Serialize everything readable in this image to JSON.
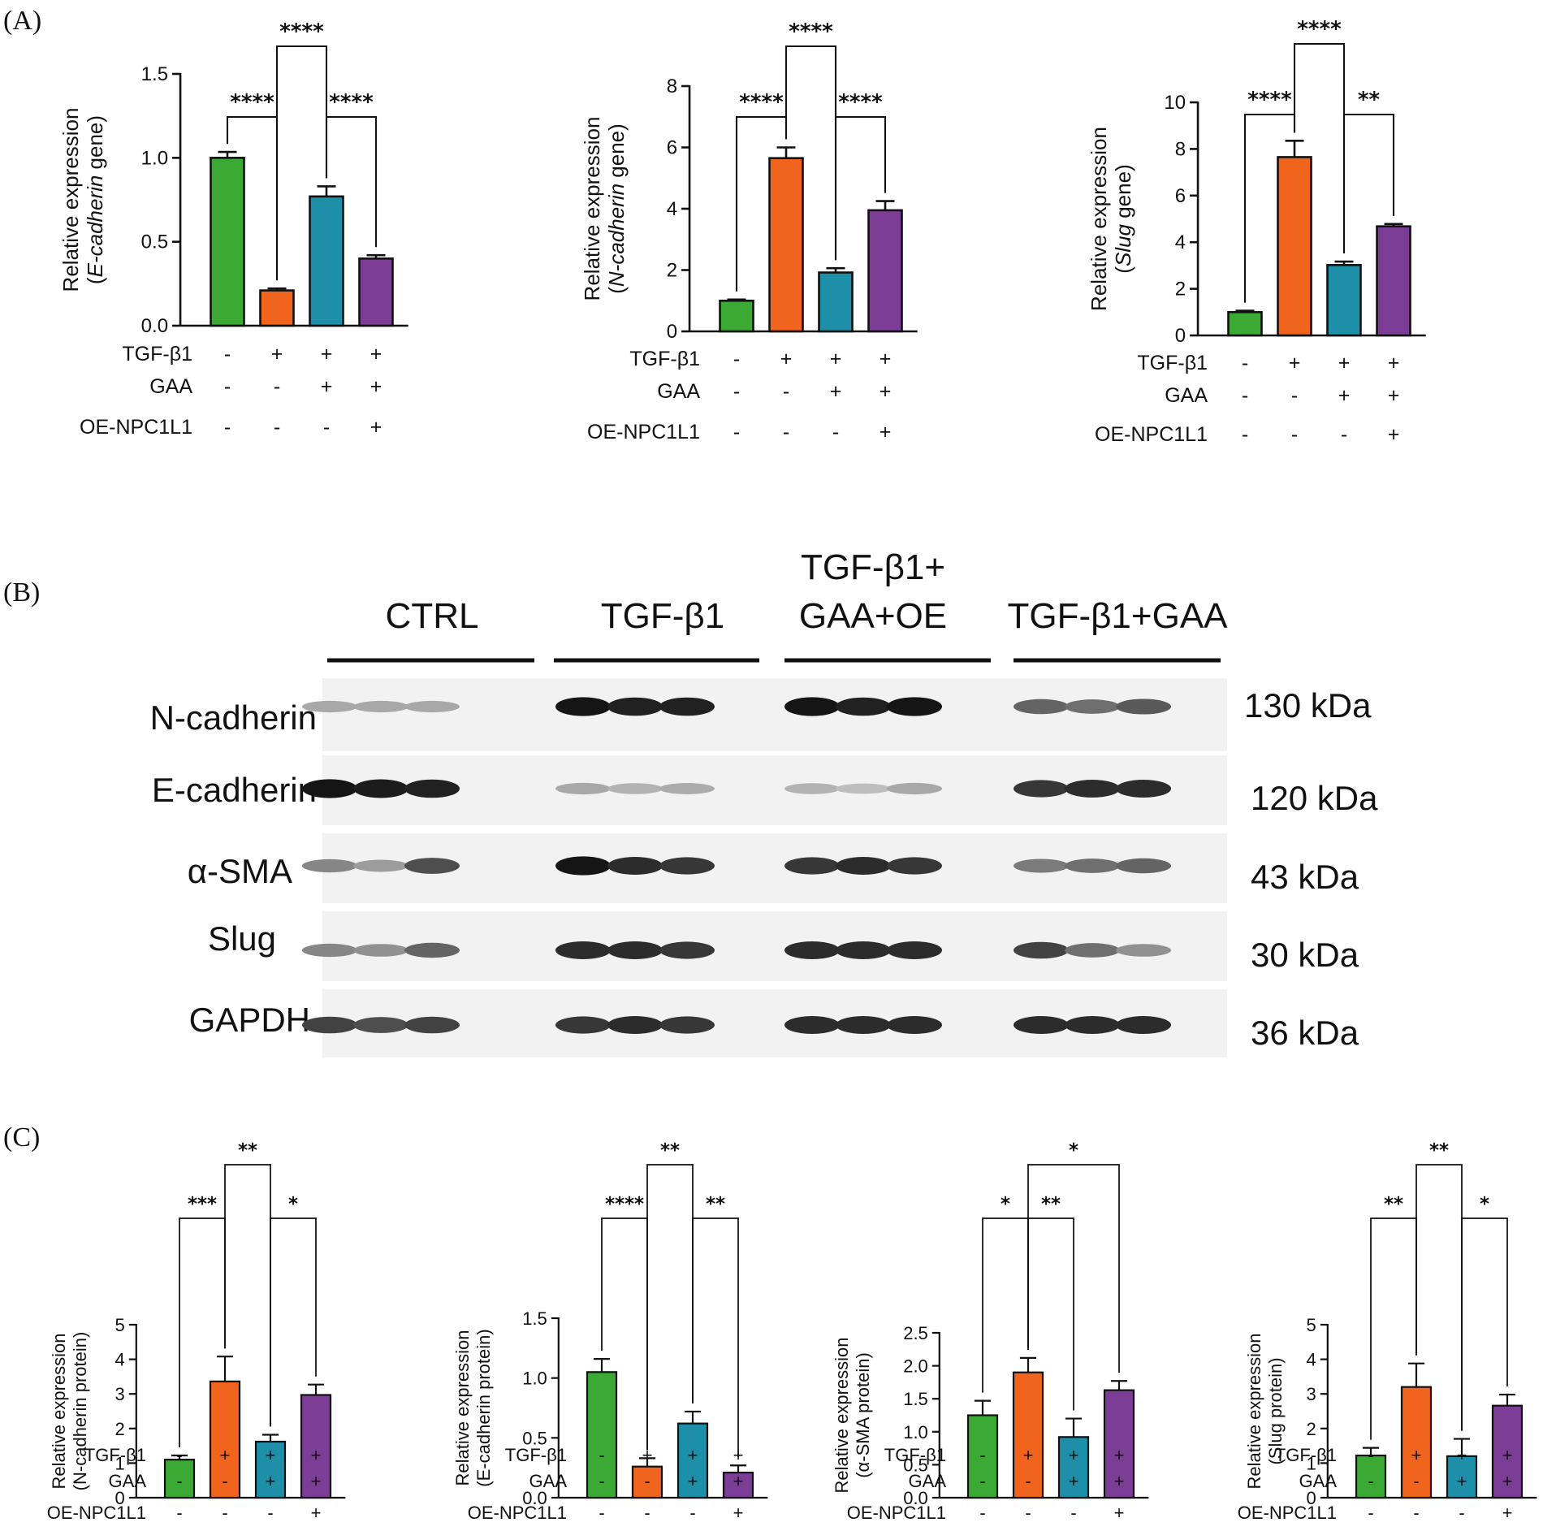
{
  "panels": {
    "a": "(A)",
    "b": "(B)",
    "c": "(C)"
  },
  "colors": {
    "ctrl": "#3aaa35",
    "tgf": "#f0641e",
    "gaa": "#1d8fa8",
    "oe": "#7c3d96"
  },
  "condition_labels": [
    "TGF-β1",
    "GAA",
    "OE-NPC1L1"
  ],
  "condition_signs": [
    [
      "-",
      "+",
      "+",
      "+"
    ],
    [
      "-",
      "-",
      "+",
      "+"
    ],
    [
      "-",
      "-",
      "-",
      "+"
    ]
  ],
  "chart_data": [
    {
      "type": "bar",
      "panel": "A",
      "ylabel_line1": "Relative expression",
      "ylabel_line2": [
        {
          "t": "(",
          "i": false
        },
        {
          "t": "E-cadherin",
          "i": true
        },
        {
          "t": "  gene)",
          "i": false
        }
      ],
      "ylim": [
        0,
        1.5
      ],
      "ticks": [
        0.0,
        0.5,
        1.0,
        1.5
      ],
      "tick_labels": [
        "0.0",
        "0.5",
        "1.0",
        "1.5"
      ],
      "categories": [
        "CTRL",
        "TGF-β1",
        "TGF-β1+GAA",
        "TGF-β1+GAA+OE-NPC1L1"
      ],
      "values": [
        1.0,
        0.21,
        0.77,
        0.4
      ],
      "errors": [
        0.035,
        0.012,
        0.06,
        0.02
      ],
      "comparisons": [
        {
          "a": 0,
          "b": 1,
          "label": "****"
        },
        {
          "a": 2,
          "b": 3,
          "label": "****"
        },
        {
          "a": 1,
          "b": 2,
          "label": "****"
        }
      ]
    },
    {
      "type": "bar",
      "panel": "A",
      "ylabel_line1": "Relative expression",
      "ylabel_line2": [
        {
          "t": "(",
          "i": false
        },
        {
          "t": "N-cadherin",
          "i": true
        },
        {
          "t": "  gene)",
          "i": false
        }
      ],
      "ylim": [
        0,
        8
      ],
      "ticks": [
        0,
        2,
        4,
        6,
        8
      ],
      "tick_labels": [
        "0",
        "2",
        "4",
        "6",
        "8"
      ],
      "categories": [
        "CTRL",
        "TGF-β1",
        "TGF-β1+GAA",
        "TGF-β1+GAA+OE-NPC1L1"
      ],
      "values": [
        1.0,
        5.65,
        1.92,
        3.95
      ],
      "errors": [
        0.04,
        0.35,
        0.14,
        0.3
      ],
      "comparisons": [
        {
          "a": 0,
          "b": 1,
          "label": "****"
        },
        {
          "a": 2,
          "b": 3,
          "label": "****"
        },
        {
          "a": 1,
          "b": 2,
          "label": "****"
        }
      ]
    },
    {
      "type": "bar",
      "panel": "A",
      "ylabel_line1": "Relative expression",
      "ylabel_line2": [
        {
          "t": "(",
          "i": false
        },
        {
          "t": "Slug",
          "i": true
        },
        {
          "t": "  gene)",
          "i": false
        }
      ],
      "ylim": [
        0,
        10
      ],
      "ticks": [
        0,
        2,
        4,
        6,
        8,
        10
      ],
      "tick_labels": [
        "0",
        "2",
        "4",
        "6",
        "8",
        "10"
      ],
      "categories": [
        "CTRL",
        "TGF-β1",
        "TGF-β1+GAA",
        "TGF-β1+GAA+OE-NPC1L1"
      ],
      "values": [
        1.0,
        7.65,
        3.02,
        4.68
      ],
      "errors": [
        0.06,
        0.7,
        0.15,
        0.1
      ],
      "comparisons": [
        {
          "a": 0,
          "b": 1,
          "label": "****"
        },
        {
          "a": 2,
          "b": 3,
          "label": "**"
        },
        {
          "a": 1,
          "b": 2,
          "label": "****"
        }
      ]
    },
    {
      "type": "bar",
      "panel": "C",
      "ylabel_line1": "Relative expression",
      "ylabel_line2": [
        {
          "t": "(N-cadherin  protein)",
          "i": false
        }
      ],
      "ylim": [
        0,
        5
      ],
      "ticks": [
        0,
        1,
        2,
        3,
        4,
        5
      ],
      "tick_labels": [
        "0",
        "1",
        "2",
        "3",
        "4",
        "5"
      ],
      "categories": [
        "CTRL",
        "TGF-β1",
        "TGF-β1+GAA",
        "TGF-β1+GAA+OE-NPC1L1"
      ],
      "values": [
        1.1,
        3.36,
        1.62,
        2.97
      ],
      "errors": [
        0.12,
        0.72,
        0.2,
        0.3
      ],
      "comparisons": [
        {
          "a": 0,
          "b": 1,
          "label": "***"
        },
        {
          "a": 2,
          "b": 3,
          "label": "*"
        },
        {
          "a": 1,
          "b": 2,
          "label": "**"
        }
      ]
    },
    {
      "type": "bar",
      "panel": "C",
      "ylabel_line1": "Relative expression",
      "ylabel_line2": [
        {
          "t": "(E-cadherin  protein)",
          "i": false
        }
      ],
      "ylim": [
        0,
        1.5
      ],
      "ticks": [
        0.0,
        0.5,
        1.0,
        1.5
      ],
      "tick_labels": [
        "0.0",
        "0.5",
        "1.0",
        "1.5"
      ],
      "categories": [
        "CTRL",
        "TGF-β1",
        "TGF-β1+GAA",
        "TGF-β1+GAA+OE-NPC1L1"
      ],
      "values": [
        1.05,
        0.26,
        0.62,
        0.21
      ],
      "errors": [
        0.11,
        0.07,
        0.1,
        0.06
      ],
      "comparisons": [
        {
          "a": 0,
          "b": 1,
          "label": "****"
        },
        {
          "a": 2,
          "b": 3,
          "label": "**"
        },
        {
          "a": 1,
          "b": 2,
          "label": "**"
        }
      ]
    },
    {
      "type": "bar",
      "panel": "C",
      "ylabel_line1": "Relative expression",
      "ylabel_line2": [
        {
          "t": "(α-SMA  protein)",
          "i": false
        }
      ],
      "ylim": [
        0,
        2.5
      ],
      "ticks": [
        0.0,
        0.5,
        1.0,
        1.5,
        2.0,
        2.5
      ],
      "tick_labels": [
        "0.0",
        "0.5",
        "1.0",
        "1.5",
        "2.0",
        "2.5"
      ],
      "categories": [
        "CTRL",
        "TGF-β1",
        "TGF-β1+GAA",
        "TGF-β1+GAA+OE-NPC1L1"
      ],
      "values": [
        1.25,
        1.9,
        0.92,
        1.63
      ],
      "errors": [
        0.22,
        0.22,
        0.28,
        0.14
      ],
      "comparisons": [
        {
          "a": 0,
          "b": 1,
          "label": "*"
        },
        {
          "a": 1,
          "b": 2,
          "label": "**"
        },
        {
          "a": 1,
          "b": 3,
          "label": "*"
        }
      ]
    },
    {
      "type": "bar",
      "panel": "C",
      "ylabel_line1": "Relative expression",
      "ylabel_line2": [
        {
          "t": "(Slug  protein)",
          "i": false
        }
      ],
      "ylim": [
        0,
        5
      ],
      "ticks": [
        0,
        1,
        2,
        3,
        4,
        5
      ],
      "tick_labels": [
        "0",
        "1",
        "2",
        "3",
        "4",
        "5"
      ],
      "categories": [
        "CTRL",
        "TGF-β1",
        "TGF-β1+GAA",
        "TGF-β1+GAA+OE-NPC1L1"
      ],
      "values": [
        1.22,
        3.2,
        1.2,
        2.66
      ],
      "errors": [
        0.22,
        0.68,
        0.5,
        0.32
      ],
      "comparisons": [
        {
          "a": 0,
          "b": 1,
          "label": "**"
        },
        {
          "a": 2,
          "b": 3,
          "label": "*"
        },
        {
          "a": 1,
          "b": 2,
          "label": "**"
        }
      ]
    }
  ],
  "blot": {
    "groups": [
      {
        "label_lines": [
          "CTRL"
        ]
      },
      {
        "label_lines": [
          "TGF-β1"
        ]
      },
      {
        "label_lines": [
          "TGF-β1+",
          "GAA+OE"
        ]
      },
      {
        "label_lines": [
          "TGF-β1+GAA"
        ]
      }
    ],
    "rows": [
      {
        "name": "N-cadherin",
        "kda": "130 kDa",
        "intensity": [
          0.3,
          0.3,
          0.3,
          0.95,
          0.9,
          0.9,
          0.95,
          0.9,
          0.95,
          0.6,
          0.55,
          0.65
        ]
      },
      {
        "name": "E-cadherin",
        "kda": "120 kDa",
        "intensity": [
          0.95,
          0.92,
          0.9,
          0.3,
          0.25,
          0.28,
          0.25,
          0.2,
          0.3,
          0.8,
          0.85,
          0.85
        ]
      },
      {
        "name": "α-SMA",
        "kda": "43 kDa",
        "intensity": [
          0.45,
          0.35,
          0.7,
          0.95,
          0.85,
          0.8,
          0.8,
          0.85,
          0.8,
          0.5,
          0.55,
          0.6
        ]
      },
      {
        "name": "Slug",
        "kda": "30 kDa",
        "intensity": [
          0.45,
          0.4,
          0.6,
          0.85,
          0.85,
          0.8,
          0.85,
          0.85,
          0.85,
          0.75,
          0.55,
          0.4
        ]
      },
      {
        "name": "GAPDH",
        "kda": "36 kDa",
        "intensity": [
          0.75,
          0.7,
          0.75,
          0.8,
          0.85,
          0.8,
          0.85,
          0.85,
          0.85,
          0.85,
          0.85,
          0.85
        ]
      }
    ]
  }
}
